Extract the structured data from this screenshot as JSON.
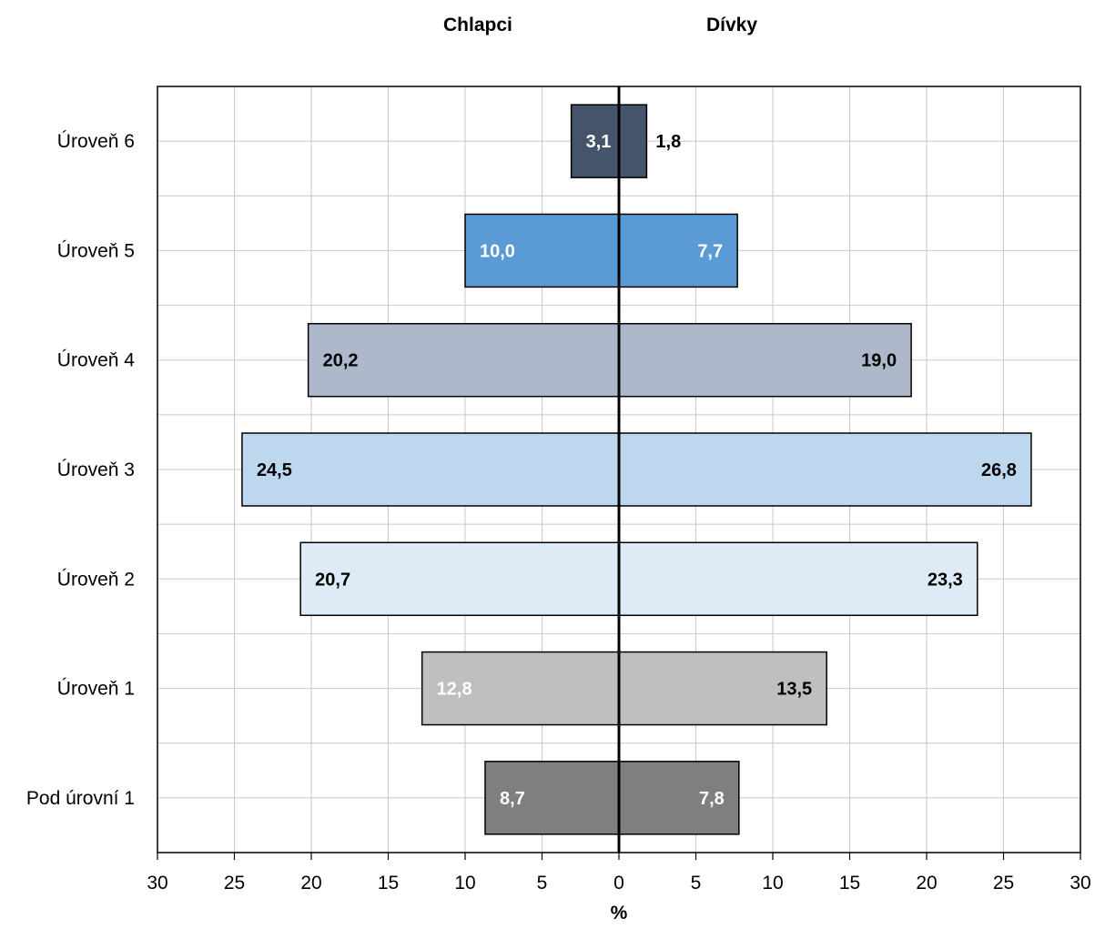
{
  "chart_data": {
    "type": "bar",
    "orientation": "horizontal",
    "layout": "population-pyramid",
    "categories": [
      "Úroveň 6",
      "Úroveň 5",
      "Úroveň 4",
      "Úroveň 3",
      "Úroveň 2",
      "Úroveň 1",
      "Pod úrovní 1"
    ],
    "series": [
      {
        "name": "Chlapci",
        "side": "left",
        "values": [
          3.1,
          10.0,
          20.2,
          24.5,
          20.7,
          12.8,
          8.7
        ],
        "labels": [
          "3,1",
          "10,0",
          "20,2",
          "24,5",
          "20,7",
          "12,8",
          "8,7"
        ]
      },
      {
        "name": "Dívky",
        "side": "right",
        "values": [
          1.8,
          7.7,
          19.0,
          26.8,
          23.3,
          13.5,
          7.8
        ],
        "labels": [
          "1,8",
          "7,7",
          "19,0",
          "26,8",
          "23,3",
          "13,5",
          "7,8"
        ]
      }
    ],
    "bar_colors": [
      "#44546a",
      "#5b9bd5",
      "#adb9ca",
      "#bdd7ee",
      "#deebf7",
      "#bfbfbf",
      "#7f7f7f"
    ],
    "label_colors": [
      "#ffffff",
      "#ffffff",
      "#000000",
      "#000000",
      "#000000",
      "#ffffff",
      "#ffffff"
    ],
    "right_label_colors": [
      "#000000",
      "#ffffff",
      "#000000",
      "#000000",
      "#000000",
      "#000000",
      "#ffffff"
    ],
    "xlim": [
      -30,
      30
    ],
    "x_ticks": [
      -30,
      -25,
      -20,
      -15,
      -10,
      -5,
      0,
      5,
      10,
      15,
      20,
      25,
      30
    ],
    "x_tick_labels": [
      "30",
      "25",
      "20",
      "15",
      "10",
      "5",
      "0",
      "5",
      "10",
      "15",
      "20",
      "25",
      "30"
    ],
    "xlabel": "%",
    "grid": true
  }
}
